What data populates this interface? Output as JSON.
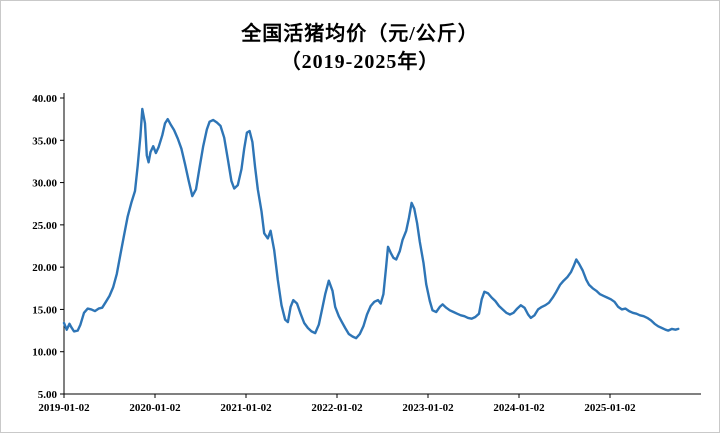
{
  "chart": {
    "title_line1": "全国活猪均价（元/公斤）",
    "title_line2": "（2019-2025年）"
  },
  "chart_data": {
    "type": "line",
    "title": "全国活猪均价（元/公斤）（2019-2025年）",
    "series_name": "全国活猪均价",
    "unit": "元/公斤",
    "xlabel": "",
    "ylabel": "",
    "line_color": "#2e75b6",
    "background": "#ffffff",
    "grid": false,
    "legend": "none",
    "ylim": [
      5,
      40
    ],
    "y_ticks": [
      {
        "v": 5,
        "label": "5.00"
      },
      {
        "v": 10,
        "label": "10.00"
      },
      {
        "v": 15,
        "label": "15.00"
      },
      {
        "v": 20,
        "label": "20.00"
      },
      {
        "v": 25,
        "label": "25.00"
      },
      {
        "v": 30,
        "label": "30.00"
      },
      {
        "v": 35,
        "label": "35.00"
      },
      {
        "v": 40,
        "label": "40.00"
      }
    ],
    "x_ticks": [
      {
        "v": 2019,
        "label": "2019-01-02"
      },
      {
        "v": 2020,
        "label": "2020-01-02"
      },
      {
        "v": 2021,
        "label": "2021-01-02"
      },
      {
        "v": 2022,
        "label": "2022-01-02"
      },
      {
        "v": 2023,
        "label": "2023-01-02"
      },
      {
        "v": 2024,
        "label": "2024-01-02"
      },
      {
        "v": 2025,
        "label": "2025-01-02"
      }
    ],
    "points": [
      [
        2019.0,
        13.4
      ],
      [
        2019.03,
        12.6
      ],
      [
        2019.06,
        13.3
      ],
      [
        2019.08,
        12.9
      ],
      [
        2019.11,
        12.4
      ],
      [
        2019.15,
        12.5
      ],
      [
        2019.18,
        13.2
      ],
      [
        2019.22,
        14.6
      ],
      [
        2019.26,
        15.1
      ],
      [
        2019.3,
        15.0
      ],
      [
        2019.34,
        14.8
      ],
      [
        2019.38,
        15.1
      ],
      [
        2019.42,
        15.2
      ],
      [
        2019.46,
        15.9
      ],
      [
        2019.5,
        16.6
      ],
      [
        2019.54,
        17.6
      ],
      [
        2019.58,
        19.2
      ],
      [
        2019.62,
        21.5
      ],
      [
        2019.66,
        23.8
      ],
      [
        2019.7,
        26.0
      ],
      [
        2019.74,
        27.6
      ],
      [
        2019.78,
        29.0
      ],
      [
        2019.81,
        32.0
      ],
      [
        2019.84,
        35.5
      ],
      [
        2019.86,
        38.7
      ],
      [
        2019.89,
        37.0
      ],
      [
        2019.91,
        33.2
      ],
      [
        2019.93,
        32.4
      ],
      [
        2019.95,
        33.6
      ],
      [
        2019.98,
        34.3
      ],
      [
        2020.01,
        33.5
      ],
      [
        2020.04,
        34.2
      ],
      [
        2020.08,
        35.6
      ],
      [
        2020.11,
        37.0
      ],
      [
        2020.14,
        37.5
      ],
      [
        2020.17,
        36.9
      ],
      [
        2020.21,
        36.2
      ],
      [
        2020.25,
        35.2
      ],
      [
        2020.29,
        34.0
      ],
      [
        2020.33,
        32.2
      ],
      [
        2020.37,
        30.2
      ],
      [
        2020.41,
        28.4
      ],
      [
        2020.45,
        29.2
      ],
      [
        2020.49,
        31.8
      ],
      [
        2020.53,
        34.3
      ],
      [
        2020.57,
        36.3
      ],
      [
        2020.6,
        37.2
      ],
      [
        2020.64,
        37.4
      ],
      [
        2020.68,
        37.1
      ],
      [
        2020.72,
        36.7
      ],
      [
        2020.76,
        35.3
      ],
      [
        2020.8,
        32.8
      ],
      [
        2020.84,
        30.2
      ],
      [
        2020.87,
        29.3
      ],
      [
        2020.91,
        29.7
      ],
      [
        2020.95,
        31.6
      ],
      [
        2020.98,
        34.0
      ],
      [
        2021.01,
        35.9
      ],
      [
        2021.04,
        36.1
      ],
      [
        2021.07,
        34.8
      ],
      [
        2021.1,
        31.8
      ],
      [
        2021.13,
        29.2
      ],
      [
        2021.17,
        26.6
      ],
      [
        2021.2,
        24.0
      ],
      [
        2021.24,
        23.4
      ],
      [
        2021.27,
        24.3
      ],
      [
        2021.31,
        22.0
      ],
      [
        2021.35,
        18.5
      ],
      [
        2021.39,
        15.5
      ],
      [
        2021.43,
        13.8
      ],
      [
        2021.46,
        13.5
      ],
      [
        2021.49,
        15.3
      ],
      [
        2021.52,
        16.1
      ],
      [
        2021.56,
        15.7
      ],
      [
        2021.6,
        14.5
      ],
      [
        2021.64,
        13.4
      ],
      [
        2021.68,
        12.8
      ],
      [
        2021.72,
        12.4
      ],
      [
        2021.76,
        12.2
      ],
      [
        2021.8,
        13.2
      ],
      [
        2021.84,
        15.2
      ],
      [
        2021.87,
        16.8
      ],
      [
        2021.91,
        18.4
      ],
      [
        2021.95,
        17.2
      ],
      [
        2021.98,
        15.3
      ],
      [
        2022.02,
        14.2
      ],
      [
        2022.05,
        13.6
      ],
      [
        2022.09,
        12.8
      ],
      [
        2022.13,
        12.1
      ],
      [
        2022.17,
        11.8
      ],
      [
        2022.21,
        11.6
      ],
      [
        2022.25,
        12.1
      ],
      [
        2022.29,
        13.0
      ],
      [
        2022.33,
        14.4
      ],
      [
        2022.37,
        15.4
      ],
      [
        2022.41,
        15.9
      ],
      [
        2022.45,
        16.1
      ],
      [
        2022.48,
        15.7
      ],
      [
        2022.51,
        16.8
      ],
      [
        2022.54,
        20.0
      ],
      [
        2022.56,
        22.4
      ],
      [
        2022.59,
        21.7
      ],
      [
        2022.62,
        21.1
      ],
      [
        2022.65,
        20.9
      ],
      [
        2022.69,
        21.9
      ],
      [
        2022.72,
        23.2
      ],
      [
        2022.76,
        24.3
      ],
      [
        2022.79,
        25.8
      ],
      [
        2022.82,
        27.6
      ],
      [
        2022.85,
        26.9
      ],
      [
        2022.88,
        25.2
      ],
      [
        2022.91,
        23.0
      ],
      [
        2022.95,
        20.5
      ],
      [
        2022.98,
        18.0
      ],
      [
        2023.02,
        16.0
      ],
      [
        2023.05,
        14.9
      ],
      [
        2023.09,
        14.7
      ],
      [
        2023.13,
        15.3
      ],
      [
        2023.16,
        15.6
      ],
      [
        2023.2,
        15.2
      ],
      [
        2023.24,
        14.9
      ],
      [
        2023.28,
        14.7
      ],
      [
        2023.32,
        14.5
      ],
      [
        2023.36,
        14.3
      ],
      [
        2023.4,
        14.2
      ],
      [
        2023.44,
        14.0
      ],
      [
        2023.48,
        13.9
      ],
      [
        2023.52,
        14.1
      ],
      [
        2023.56,
        14.5
      ],
      [
        2023.59,
        16.2
      ],
      [
        2023.62,
        17.1
      ],
      [
        2023.66,
        16.9
      ],
      [
        2023.7,
        16.4
      ],
      [
        2023.74,
        16.0
      ],
      [
        2023.78,
        15.4
      ],
      [
        2023.82,
        15.0
      ],
      [
        2023.86,
        14.6
      ],
      [
        2023.9,
        14.4
      ],
      [
        2023.94,
        14.6
      ],
      [
        2023.98,
        15.1
      ],
      [
        2024.02,
        15.5
      ],
      [
        2024.06,
        15.2
      ],
      [
        2024.1,
        14.4
      ],
      [
        2024.13,
        14.0
      ],
      [
        2024.17,
        14.3
      ],
      [
        2024.21,
        15.0
      ],
      [
        2024.25,
        15.3
      ],
      [
        2024.29,
        15.5
      ],
      [
        2024.33,
        15.8
      ],
      [
        2024.37,
        16.4
      ],
      [
        2024.41,
        17.1
      ],
      [
        2024.45,
        17.9
      ],
      [
        2024.49,
        18.4
      ],
      [
        2024.53,
        18.8
      ],
      [
        2024.57,
        19.4
      ],
      [
        2024.6,
        20.1
      ],
      [
        2024.63,
        20.9
      ],
      [
        2024.66,
        20.4
      ],
      [
        2024.7,
        19.6
      ],
      [
        2024.74,
        18.5
      ],
      [
        2024.77,
        17.9
      ],
      [
        2024.81,
        17.5
      ],
      [
        2024.85,
        17.2
      ],
      [
        2024.89,
        16.8
      ],
      [
        2024.93,
        16.6
      ],
      [
        2024.97,
        16.4
      ],
      [
        2025.01,
        16.2
      ],
      [
        2025.05,
        15.9
      ],
      [
        2025.09,
        15.3
      ],
      [
        2025.13,
        15.0
      ],
      [
        2025.17,
        15.1
      ],
      [
        2025.21,
        14.8
      ],
      [
        2025.25,
        14.6
      ],
      [
        2025.29,
        14.5
      ],
      [
        2025.33,
        14.3
      ],
      [
        2025.37,
        14.2
      ],
      [
        2025.41,
        14.0
      ],
      [
        2025.45,
        13.7
      ],
      [
        2025.49,
        13.3
      ],
      [
        2025.53,
        13.0
      ],
      [
        2025.57,
        12.8
      ],
      [
        2025.61,
        12.6
      ],
      [
        2025.64,
        12.5
      ],
      [
        2025.68,
        12.7
      ],
      [
        2025.72,
        12.6
      ],
      [
        2025.75,
        12.7
      ]
    ]
  }
}
